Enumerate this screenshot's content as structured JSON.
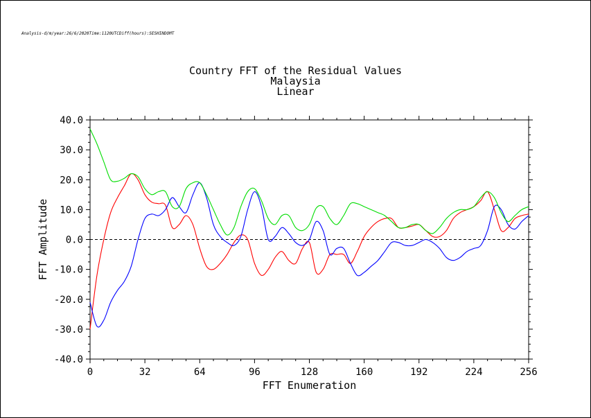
{
  "header": {
    "meta_text": "Analysis-d/m/year:26/6/2020Time:1120UTCDiff(hours):SESHINDOMT"
  },
  "chart_data": {
    "type": "line",
    "title": [
      "Country FFT of the Residual Values",
      "Malaysia",
      "Linear"
    ],
    "xlabel": "FFT Enumeration",
    "ylabel": "FFT Amplitude",
    "xlim": [
      0,
      256
    ],
    "ylim": [
      -40,
      40
    ],
    "x_ticks": [
      "0",
      "32",
      "64",
      "96",
      "128",
      "160",
      "192",
      "224",
      "256"
    ],
    "y_ticks": [
      "-40.0",
      "-30.0",
      "-20.0",
      "-10.0",
      "0.0",
      "10.0",
      "20.0",
      "30.0",
      "40.0"
    ],
    "zero_line": true,
    "grid": false,
    "x": [
      0,
      4,
      8,
      12,
      16,
      20,
      24,
      28,
      32,
      36,
      40,
      44,
      48,
      52,
      56,
      60,
      64,
      68,
      72,
      76,
      80,
      84,
      88,
      92,
      96,
      100,
      104,
      108,
      112,
      116,
      120,
      124,
      128,
      132,
      136,
      140,
      144,
      148,
      152,
      156,
      160,
      164,
      168,
      172,
      176,
      180,
      184,
      188,
      192,
      196,
      200,
      204,
      208,
      212,
      216,
      220,
      224,
      228,
      232,
      236,
      240,
      244,
      248,
      252,
      256
    ],
    "series": [
      {
        "color": "#ff0000",
        "values": [
          -30,
          -12,
          0,
          9,
          14,
          18,
          22,
          20,
          15,
          12.5,
          12,
          11.5,
          4,
          5,
          8,
          5,
          -3,
          -9,
          -10,
          -8,
          -5,
          -1,
          1.5,
          0,
          -8,
          -12,
          -10,
          -6,
          -4,
          -7,
          -8,
          -3,
          -1,
          -11,
          -10,
          -5,
          -5,
          -5,
          -8,
          -4,
          1,
          4,
          6,
          7,
          7,
          4,
          4,
          4.5,
          5,
          3,
          1,
          1,
          3,
          7,
          9,
          10,
          11,
          13,
          16,
          10,
          3,
          4,
          7,
          8,
          8.5
        ]
      },
      {
        "color": "#0000ff",
        "values": [
          -21,
          -29,
          -27,
          -21,
          -17,
          -14,
          -9,
          0,
          7,
          8.5,
          8,
          10,
          14,
          11,
          9,
          15,
          19,
          14,
          5,
          1,
          -1,
          -2,
          1,
          10,
          16,
          11,
          0,
          1,
          4,
          2,
          -1,
          -2,
          0,
          6,
          3,
          -5,
          -3,
          -3,
          -8,
          -12,
          -11,
          -9,
          -7,
          -4,
          -1,
          -1,
          -2,
          -2,
          -1,
          0,
          -1,
          -3,
          -6,
          -7,
          -6,
          -4,
          -3,
          -2,
          3,
          11,
          10,
          5,
          3.5,
          6,
          8
        ]
      },
      {
        "color": "#00dd00",
        "values": [
          37,
          32,
          26,
          20,
          19.5,
          20.5,
          22,
          21,
          17,
          15,
          16,
          16,
          11,
          11,
          17,
          19,
          19,
          15,
          10,
          5,
          1.5,
          4,
          11,
          16,
          17,
          13,
          7,
          5,
          8,
          8,
          4,
          3,
          5,
          10.5,
          11,
          7,
          5,
          8,
          12,
          12,
          11,
          10,
          9,
          8,
          6,
          4,
          4,
          5,
          5,
          3,
          2,
          4,
          7,
          9,
          10,
          10,
          11,
          14,
          16,
          14,
          9,
          6,
          8,
          10,
          11
        ]
      }
    ]
  }
}
